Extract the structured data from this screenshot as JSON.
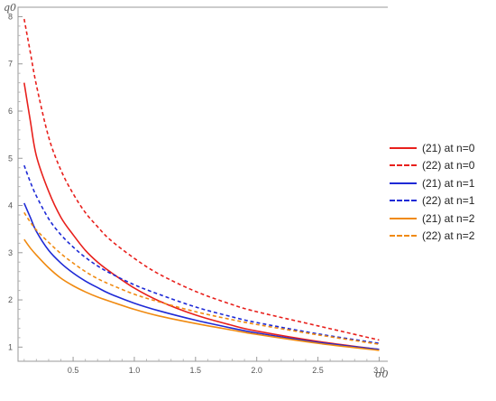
{
  "chart_data": {
    "type": "line",
    "xlabel": "σ0",
    "ylabel": "q0",
    "xlim": [
      0.05,
      3.1
    ],
    "ylim": [
      0.7,
      8.2
    ],
    "xticks": [
      0.5,
      1.0,
      1.5,
      2.0,
      2.5,
      3.0
    ],
    "xtick_labels": [
      "0.5",
      "1.0",
      "1.5",
      "2.0",
      "2.5",
      "3.0"
    ],
    "yticks": [
      1,
      2,
      3,
      4,
      5,
      6,
      7,
      8
    ],
    "ytick_labels": [
      "1",
      "2",
      "3",
      "4",
      "5",
      "6",
      "7",
      "8"
    ],
    "grid": false,
    "legend_position": "right",
    "series": [
      {
        "name": "(21) at n=0",
        "color": "#e8201c",
        "dash": "solid",
        "x": [
          0.1,
          0.15,
          0.2,
          0.3,
          0.4,
          0.5,
          0.6,
          0.7,
          0.8,
          1.0,
          1.2,
          1.5,
          1.8,
          2.0,
          2.5,
          3.0
        ],
        "y": [
          6.6,
          5.8,
          5.05,
          4.3,
          3.75,
          3.38,
          3.05,
          2.8,
          2.6,
          2.25,
          1.98,
          1.68,
          1.46,
          1.34,
          1.12,
          0.95
        ]
      },
      {
        "name": "(22) at n=0",
        "color": "#e8201c",
        "dash": "dashed",
        "x": [
          0.1,
          0.15,
          0.2,
          0.3,
          0.4,
          0.5,
          0.6,
          0.7,
          0.8,
          1.0,
          1.2,
          1.5,
          1.8,
          2.0,
          2.5,
          3.0
        ],
        "y": [
          7.95,
          7.25,
          6.55,
          5.45,
          4.75,
          4.25,
          3.85,
          3.55,
          3.28,
          2.88,
          2.55,
          2.18,
          1.9,
          1.75,
          1.45,
          1.15
        ]
      },
      {
        "name": "(21) at n=1",
        "color": "#1e2ad6",
        "dash": "solid",
        "x": [
          0.1,
          0.15,
          0.2,
          0.3,
          0.4,
          0.5,
          0.6,
          0.7,
          0.8,
          1.0,
          1.2,
          1.5,
          1.8,
          2.0,
          2.5,
          3.0
        ],
        "y": [
          4.05,
          3.75,
          3.45,
          3.05,
          2.78,
          2.57,
          2.4,
          2.26,
          2.13,
          1.93,
          1.77,
          1.57,
          1.4,
          1.3,
          1.1,
          0.95
        ]
      },
      {
        "name": "(22) at n=1",
        "color": "#1e2ad6",
        "dash": "dashed",
        "x": [
          0.1,
          0.15,
          0.2,
          0.3,
          0.4,
          0.5,
          0.6,
          0.7,
          0.8,
          1.0,
          1.2,
          1.5,
          1.8,
          2.0,
          2.5,
          3.0
        ],
        "y": [
          4.85,
          4.5,
          4.2,
          3.72,
          3.38,
          3.12,
          2.9,
          2.72,
          2.57,
          2.32,
          2.12,
          1.85,
          1.64,
          1.52,
          1.28,
          1.08
        ]
      },
      {
        "name": "(21) at n=2",
        "color": "#f08a10",
        "dash": "solid",
        "x": [
          0.1,
          0.15,
          0.2,
          0.3,
          0.4,
          0.5,
          0.6,
          0.7,
          0.8,
          1.0,
          1.2,
          1.5,
          1.8,
          2.0,
          2.5,
          3.0
        ],
        "y": [
          3.28,
          3.1,
          2.95,
          2.68,
          2.46,
          2.3,
          2.17,
          2.06,
          1.97,
          1.8,
          1.66,
          1.5,
          1.36,
          1.27,
          1.08,
          0.93
        ]
      },
      {
        "name": "(22) at n=2",
        "color": "#f08a10",
        "dash": "dashed",
        "x": [
          0.1,
          0.15,
          0.2,
          0.3,
          0.4,
          0.5,
          0.6,
          0.7,
          0.8,
          1.0,
          1.2,
          1.5,
          1.8,
          2.0,
          2.5,
          3.0
        ],
        "y": [
          3.85,
          3.65,
          3.48,
          3.22,
          2.98,
          2.78,
          2.6,
          2.45,
          2.33,
          2.12,
          1.96,
          1.75,
          1.58,
          1.48,
          1.26,
          1.06
        ]
      }
    ]
  }
}
